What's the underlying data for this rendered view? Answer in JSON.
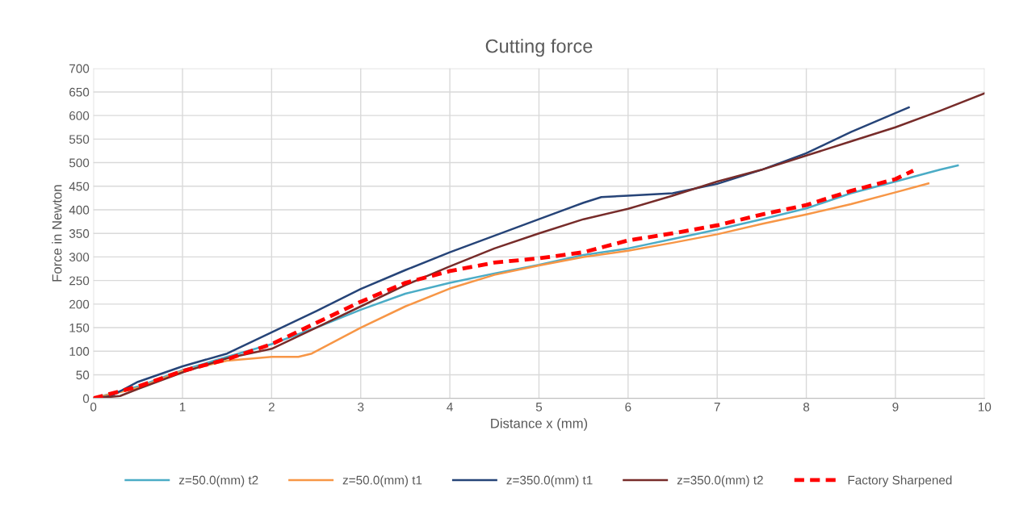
{
  "chart_data": {
    "type": "line",
    "title": "Cutting force",
    "xlabel": "Distance x (mm)",
    "ylabel": "Force in Newton",
    "xlim": [
      0,
      10
    ],
    "xticks": [
      0,
      1,
      2,
      3,
      4,
      5,
      6,
      7,
      8,
      9,
      10
    ],
    "ylim": [
      0,
      700
    ],
    "yticks": [
      0,
      50,
      100,
      150,
      200,
      250,
      300,
      350,
      400,
      450,
      500,
      550,
      600,
      650,
      700
    ],
    "grid": true,
    "legend": "bottom",
    "marker": "none",
    "series": [
      {
        "name": "z=50.0(mm) t2",
        "color": "#4bacc6",
        "line_style": "solid",
        "x": [
          0,
          0.5,
          1,
          1.5,
          2,
          2.5,
          3,
          3.5,
          4,
          4.5,
          5,
          5.5,
          6,
          6.5,
          7,
          7.5,
          8,
          8.5,
          9,
          9.5,
          9.7
        ],
        "values": [
          0,
          25,
          60,
          88,
          115,
          150,
          188,
          222,
          245,
          265,
          283,
          304,
          318,
          338,
          358,
          380,
          403,
          435,
          460,
          485,
          494
        ]
      },
      {
        "name": "z=50.0(mm) t1",
        "color": "#f79646",
        "line_style": "solid",
        "x": [
          0,
          0.5,
          1,
          1.5,
          2,
          2.3,
          2.45,
          3,
          3.5,
          4,
          4.5,
          5,
          5.5,
          6,
          6.5,
          7,
          7.5,
          8,
          8.5,
          9,
          9.37
        ],
        "values": [
          0,
          22,
          58,
          80,
          88,
          88,
          95,
          150,
          195,
          233,
          262,
          282,
          300,
          313,
          330,
          348,
          370,
          390,
          412,
          437,
          456
        ]
      },
      {
        "name": "z=350.0(mm) t1",
        "color": "#264478",
        "line_style": "solid",
        "x": [
          0,
          0.2,
          0.5,
          1,
          1.5,
          2,
          2.5,
          3,
          3.5,
          4,
          4.5,
          5,
          5.5,
          5.7,
          6,
          6.5,
          7,
          7.5,
          8,
          8.5,
          9,
          9.15
        ],
        "values": [
          0,
          5,
          35,
          68,
          95,
          140,
          185,
          232,
          272,
          310,
          345,
          380,
          415,
          427,
          430,
          435,
          455,
          485,
          520,
          565,
          605,
          617
        ]
      },
      {
        "name": "z=350.0(mm) t2",
        "color": "#772c2a",
        "line_style": "solid",
        "x": [
          0,
          0.3,
          0.5,
          1,
          1.5,
          2,
          2.5,
          3,
          3.5,
          4,
          4.5,
          5,
          5.5,
          6,
          6.5,
          7,
          7.5,
          8,
          8.5,
          9,
          9.5,
          10
        ],
        "values": [
          0,
          5,
          20,
          55,
          85,
          105,
          150,
          195,
          240,
          280,
          318,
          350,
          380,
          402,
          430,
          460,
          485,
          515,
          545,
          575,
          610,
          647
        ]
      },
      {
        "name": "Factory Sharpened",
        "color": "#ff0000",
        "line_style": "dashed",
        "x": [
          0,
          0.5,
          1,
          1.5,
          2,
          2.5,
          3,
          3.5,
          4,
          4.5,
          5,
          5.5,
          6,
          6.5,
          7,
          7.5,
          8,
          8.5,
          9,
          9.2
        ],
        "values": [
          0,
          25,
          58,
          83,
          115,
          160,
          205,
          245,
          270,
          288,
          297,
          310,
          335,
          350,
          367,
          390,
          410,
          440,
          465,
          483
        ]
      }
    ]
  }
}
